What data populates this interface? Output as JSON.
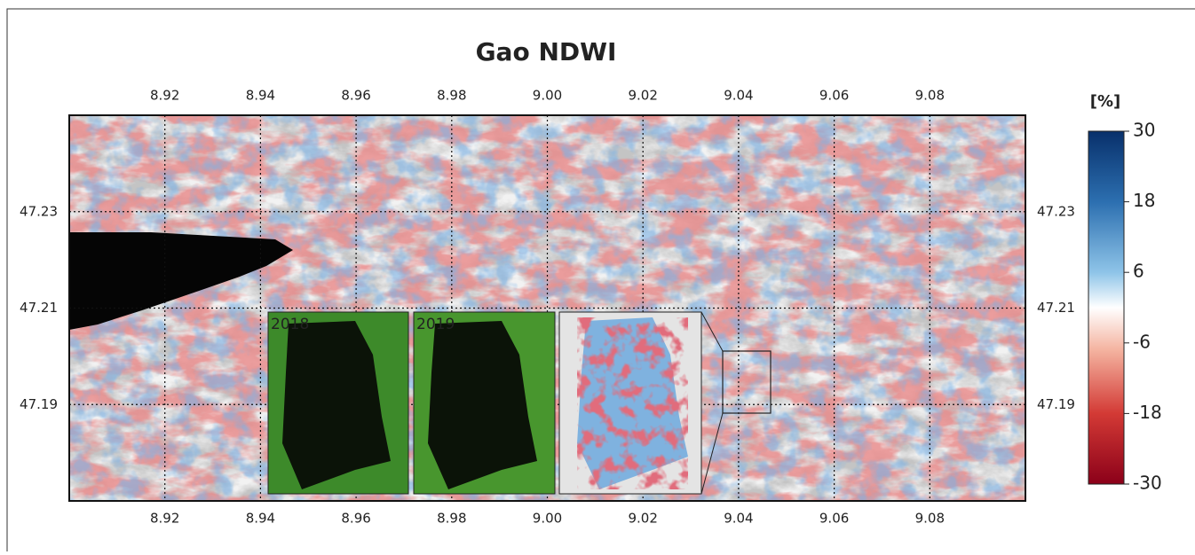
{
  "title": "Gao NDWI",
  "map": {
    "xlim": [
      8.9,
      9.1
    ],
    "ylim": [
      47.17,
      47.25
    ],
    "xticks": [
      8.92,
      8.94,
      8.96,
      8.98,
      {
        "value": 9,
        "label": "9.00"
      },
      9.02,
      9.04,
      9.06,
      9.08
    ],
    "yticks": [
      47.23,
      47.21,
      47.19
    ]
  },
  "insets": [
    {
      "label": "2018"
    },
    {
      "label": "2019"
    }
  ],
  "colorbar": {
    "label": "[%]",
    "lim": [
      -30,
      30
    ],
    "ticks": [
      30,
      18,
      6,
      -6,
      -18,
      -30
    ]
  }
}
